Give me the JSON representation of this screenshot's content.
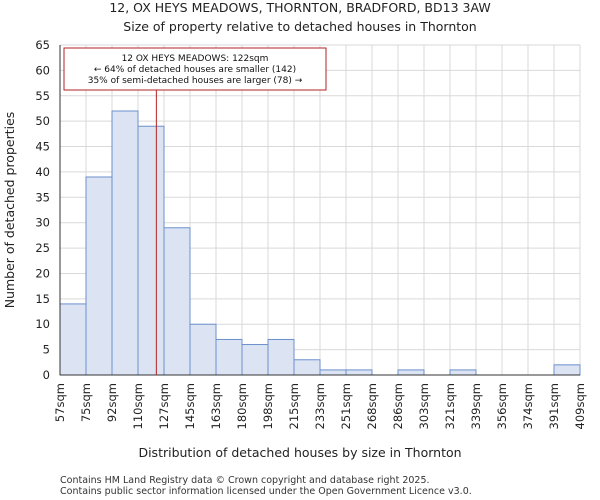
{
  "chart_data": {
    "type": "bar",
    "title_line1": "12, OX HEYS MEADOWS, THORNTON, BRADFORD, BD13 3AW",
    "title_line2": "Size of property relative to detached houses in Thornton",
    "xlabel": "Distribution of detached houses by size in Thornton",
    "ylabel": "Number of detached properties",
    "bin_edges": [
      57,
      75,
      92,
      110,
      127,
      145,
      163,
      180,
      198,
      215,
      233,
      251,
      268,
      286,
      303,
      321,
      339,
      356,
      374,
      391,
      409
    ],
    "x_tick_labels": [
      "57sqm",
      "75sqm",
      "92sqm",
      "110sqm",
      "127sqm",
      "145sqm",
      "163sqm",
      "180sqm",
      "198sqm",
      "215sqm",
      "233sqm",
      "251sqm",
      "268sqm",
      "286sqm",
      "303sqm",
      "321sqm",
      "339sqm",
      "356sqm",
      "374sqm",
      "391sqm",
      "409sqm"
    ],
    "values": [
      14,
      39,
      52,
      49,
      29,
      10,
      7,
      6,
      7,
      3,
      1,
      1,
      0,
      1,
      0,
      1,
      0,
      0,
      0,
      2
    ],
    "y_ticks": [
      0,
      5,
      10,
      15,
      20,
      25,
      30,
      35,
      40,
      45,
      50,
      55,
      60,
      65
    ],
    "ylim": [
      0,
      65
    ],
    "bar_fill": "#dce4f4",
    "bar_stroke": "#6b8fcb",
    "marker": {
      "value": 122,
      "color": "#b22222",
      "line1": "12 OX HEYS MEADOWS: 122sqm",
      "line2": "← 64% of detached houses are smaller (142)",
      "line3": "35% of semi-detached houses are larger (78) →"
    }
  },
  "footer": {
    "line1": "Contains HM Land Registry data © Crown copyright and database right 2025.",
    "line2": "Contains public sector information licensed under the Open Government Licence v3.0."
  }
}
